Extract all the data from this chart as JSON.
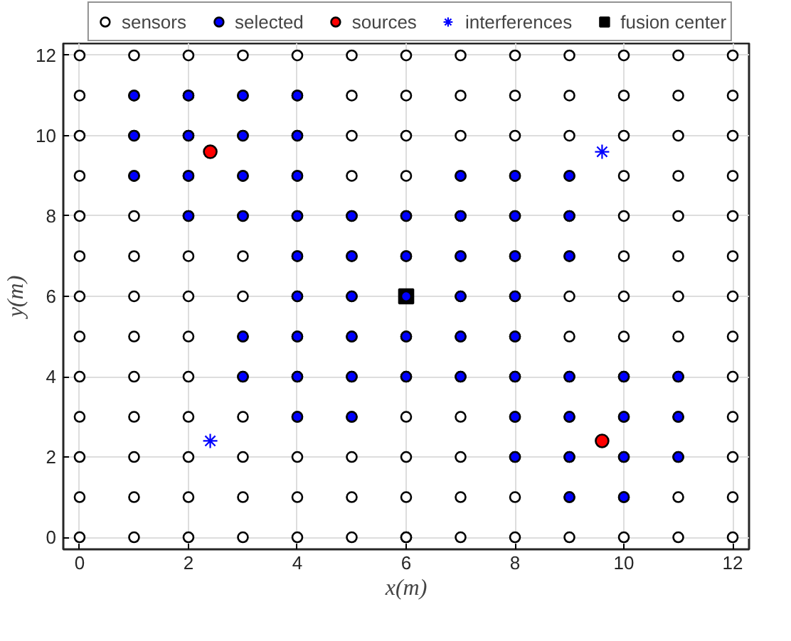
{
  "chart_data": {
    "type": "scatter",
    "xlabel": "x(m)",
    "ylabel": "y(m)",
    "xlim": [
      -0.3,
      12.3
    ],
    "ylim": [
      -0.3,
      12.3
    ],
    "xticks": [
      0,
      2,
      4,
      6,
      8,
      10,
      12
    ],
    "yticks": [
      0,
      2,
      4,
      6,
      8,
      10,
      12
    ],
    "grid": true,
    "legend": "top",
    "series": [
      {
        "name": "sensors",
        "color": "#ffffff",
        "marker": "circle",
        "x": [
          0,
          1,
          2,
          3,
          4,
          5,
          6,
          7,
          8,
          9,
          10,
          11,
          12,
          0,
          1,
          2,
          3,
          4,
          5,
          6,
          7,
          8,
          9,
          10,
          11,
          12,
          0,
          1,
          2,
          3,
          4,
          5,
          6,
          7,
          8,
          9,
          10,
          11,
          12,
          0,
          1,
          2,
          3,
          4,
          5,
          6,
          7,
          8,
          9,
          10,
          11,
          12,
          0,
          1,
          2,
          3,
          4,
          5,
          6,
          7,
          8,
          9,
          10,
          11,
          12,
          0,
          1,
          2,
          3,
          4,
          5,
          6,
          7,
          8,
          9,
          10,
          11,
          12,
          0,
          1,
          2,
          3,
          4,
          5,
          6,
          7,
          8,
          9,
          10,
          11,
          12,
          0,
          1,
          2,
          3,
          4,
          5,
          6,
          7,
          8,
          9,
          10,
          11,
          12,
          0,
          1,
          2,
          3,
          4,
          5,
          6,
          7,
          8,
          9,
          10,
          11,
          12,
          0,
          1,
          2,
          3,
          4,
          5,
          6,
          7,
          8,
          9,
          10,
          11,
          12,
          0,
          1,
          2,
          3,
          4,
          5,
          6,
          7,
          8,
          9,
          10,
          11,
          12,
          0,
          1,
          2,
          3,
          4,
          5,
          6,
          7,
          8,
          9,
          10,
          11,
          12,
          0,
          1,
          2,
          3,
          4,
          5,
          6,
          7,
          8,
          9,
          10,
          11,
          12
        ],
        "values": [
          0,
          0,
          0,
          0,
          0,
          0,
          0,
          0,
          0,
          0,
          0,
          0,
          0,
          1,
          1,
          1,
          1,
          1,
          1,
          1,
          1,
          1,
          1,
          1,
          1,
          1,
          2,
          2,
          2,
          2,
          2,
          2,
          2,
          2,
          2,
          2,
          2,
          2,
          2,
          3,
          3,
          3,
          3,
          3,
          3,
          3,
          3,
          3,
          3,
          3,
          3,
          3,
          4,
          4,
          4,
          4,
          4,
          4,
          4,
          4,
          4,
          4,
          4,
          4,
          4,
          5,
          5,
          5,
          5,
          5,
          5,
          5,
          5,
          5,
          5,
          5,
          5,
          5,
          6,
          6,
          6,
          6,
          6,
          6,
          null,
          6,
          6,
          6,
          6,
          6,
          6,
          7,
          7,
          7,
          7,
          7,
          7,
          7,
          7,
          7,
          7,
          7,
          7,
          7,
          8,
          8,
          8,
          8,
          8,
          8,
          8,
          8,
          8,
          8,
          8,
          8,
          8,
          9,
          9,
          9,
          9,
          9,
          9,
          9,
          9,
          9,
          9,
          9,
          9,
          9,
          10,
          10,
          10,
          10,
          10,
          10,
          10,
          10,
          10,
          10,
          10,
          10,
          10,
          11,
          11,
          11,
          11,
          11,
          11,
          11,
          11,
          11,
          11,
          11,
          11,
          11,
          12,
          12,
          12,
          12,
          12,
          12,
          12,
          12,
          12,
          12,
          12,
          12,
          12
        ]
      },
      {
        "name": "selected",
        "color": "#0000ff",
        "marker": "circle",
        "x": [
          1,
          2,
          3,
          4,
          1,
          2,
          3,
          4,
          1,
          2,
          3,
          4,
          7,
          8,
          9,
          2,
          3,
          4,
          5,
          6,
          7,
          8,
          9,
          4,
          5,
          6,
          7,
          8,
          9,
          4,
          5,
          6,
          7,
          8,
          3,
          4,
          5,
          6,
          7,
          8,
          3,
          4,
          5,
          6,
          7,
          8,
          9,
          10,
          11,
          4,
          5,
          8,
          9,
          10,
          11,
          8,
          9,
          10,
          11,
          9,
          10
        ],
        "values": [
          11,
          11,
          11,
          11,
          10,
          10,
          10,
          10,
          9,
          9,
          9,
          9,
          9,
          9,
          9,
          8,
          8,
          8,
          8,
          8,
          8,
          8,
          8,
          7,
          7,
          7,
          7,
          7,
          7,
          6,
          6,
          6,
          6,
          6,
          5,
          5,
          5,
          5,
          5,
          5,
          4,
          4,
          4,
          4,
          4,
          4,
          4,
          4,
          4,
          3,
          3,
          3,
          3,
          3,
          3,
          2,
          2,
          2,
          2,
          1,
          1
        ]
      },
      {
        "name": "sources",
        "color": "#ff0000",
        "marker": "circle",
        "x": [
          2.4,
          9.6
        ],
        "values": [
          9.6,
          2.4
        ]
      },
      {
        "name": "interferences",
        "color": "#0000ff",
        "marker": "cross",
        "x": [
          9.6,
          2.4
        ],
        "values": [
          9.6,
          2.4
        ]
      },
      {
        "name": "fusion center",
        "color": "#000000",
        "marker": "square",
        "x": [
          6
        ],
        "values": [
          6
        ]
      }
    ]
  }
}
